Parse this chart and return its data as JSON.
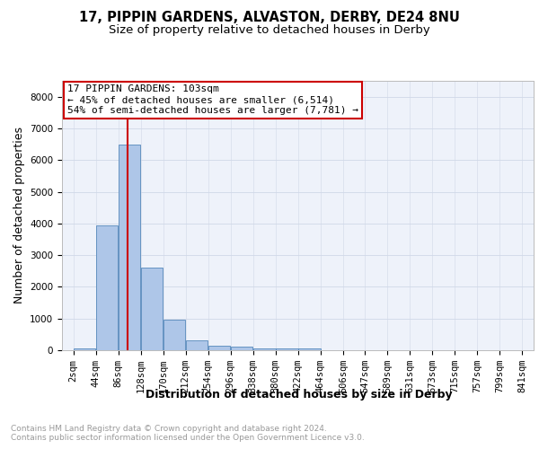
{
  "title": "17, PIPPIN GARDENS, ALVASTON, DERBY, DE24 8NU",
  "subtitle": "Size of property relative to detached houses in Derby",
  "xlabel": "Distribution of detached houses by size in Derby",
  "ylabel": "Number of detached properties",
  "bar_color": "#aec6e8",
  "bar_edge_color": "#5588bb",
  "bin_edges": [
    2,
    44,
    86,
    128,
    170,
    212,
    254,
    296,
    338,
    380,
    422,
    464,
    506,
    547,
    589,
    631,
    673,
    715,
    757,
    799,
    841
  ],
  "bar_heights": [
    50,
    3950,
    6500,
    2600,
    950,
    300,
    130,
    120,
    60,
    50,
    50,
    5,
    3,
    2,
    1,
    1,
    1,
    1,
    1,
    1
  ],
  "tick_labels": [
    "2sqm",
    "44sqm",
    "86sqm",
    "128sqm",
    "170sqm",
    "212sqm",
    "254sqm",
    "296sqm",
    "338sqm",
    "380sqm",
    "422sqm",
    "464sqm",
    "506sqm",
    "547sqm",
    "589sqm",
    "631sqm",
    "673sqm",
    "715sqm",
    "757sqm",
    "799sqm",
    "841sqm"
  ],
  "property_size": 103,
  "vline_color": "#cc0000",
  "ylim": [
    0,
    8500
  ],
  "yticks": [
    0,
    1000,
    2000,
    3000,
    4000,
    5000,
    6000,
    7000,
    8000
  ],
  "annotation_text": "17 PIPPIN GARDENS: 103sqm\n← 45% of detached houses are smaller (6,514)\n54% of semi-detached houses are larger (7,781) →",
  "annotation_box_color": "#ffffff",
  "annotation_box_edge": "#cc0000",
  "grid_color": "#d0d8e8",
  "background_color": "#eef2fa",
  "footer_text": "Contains HM Land Registry data © Crown copyright and database right 2024.\nContains public sector information licensed under the Open Government Licence v3.0.",
  "title_fontsize": 10.5,
  "subtitle_fontsize": 9.5,
  "ylabel_fontsize": 9,
  "xlabel_fontsize": 9,
  "tick_fontsize": 7.5,
  "footer_fontsize": 6.5,
  "annotation_fontsize": 8
}
